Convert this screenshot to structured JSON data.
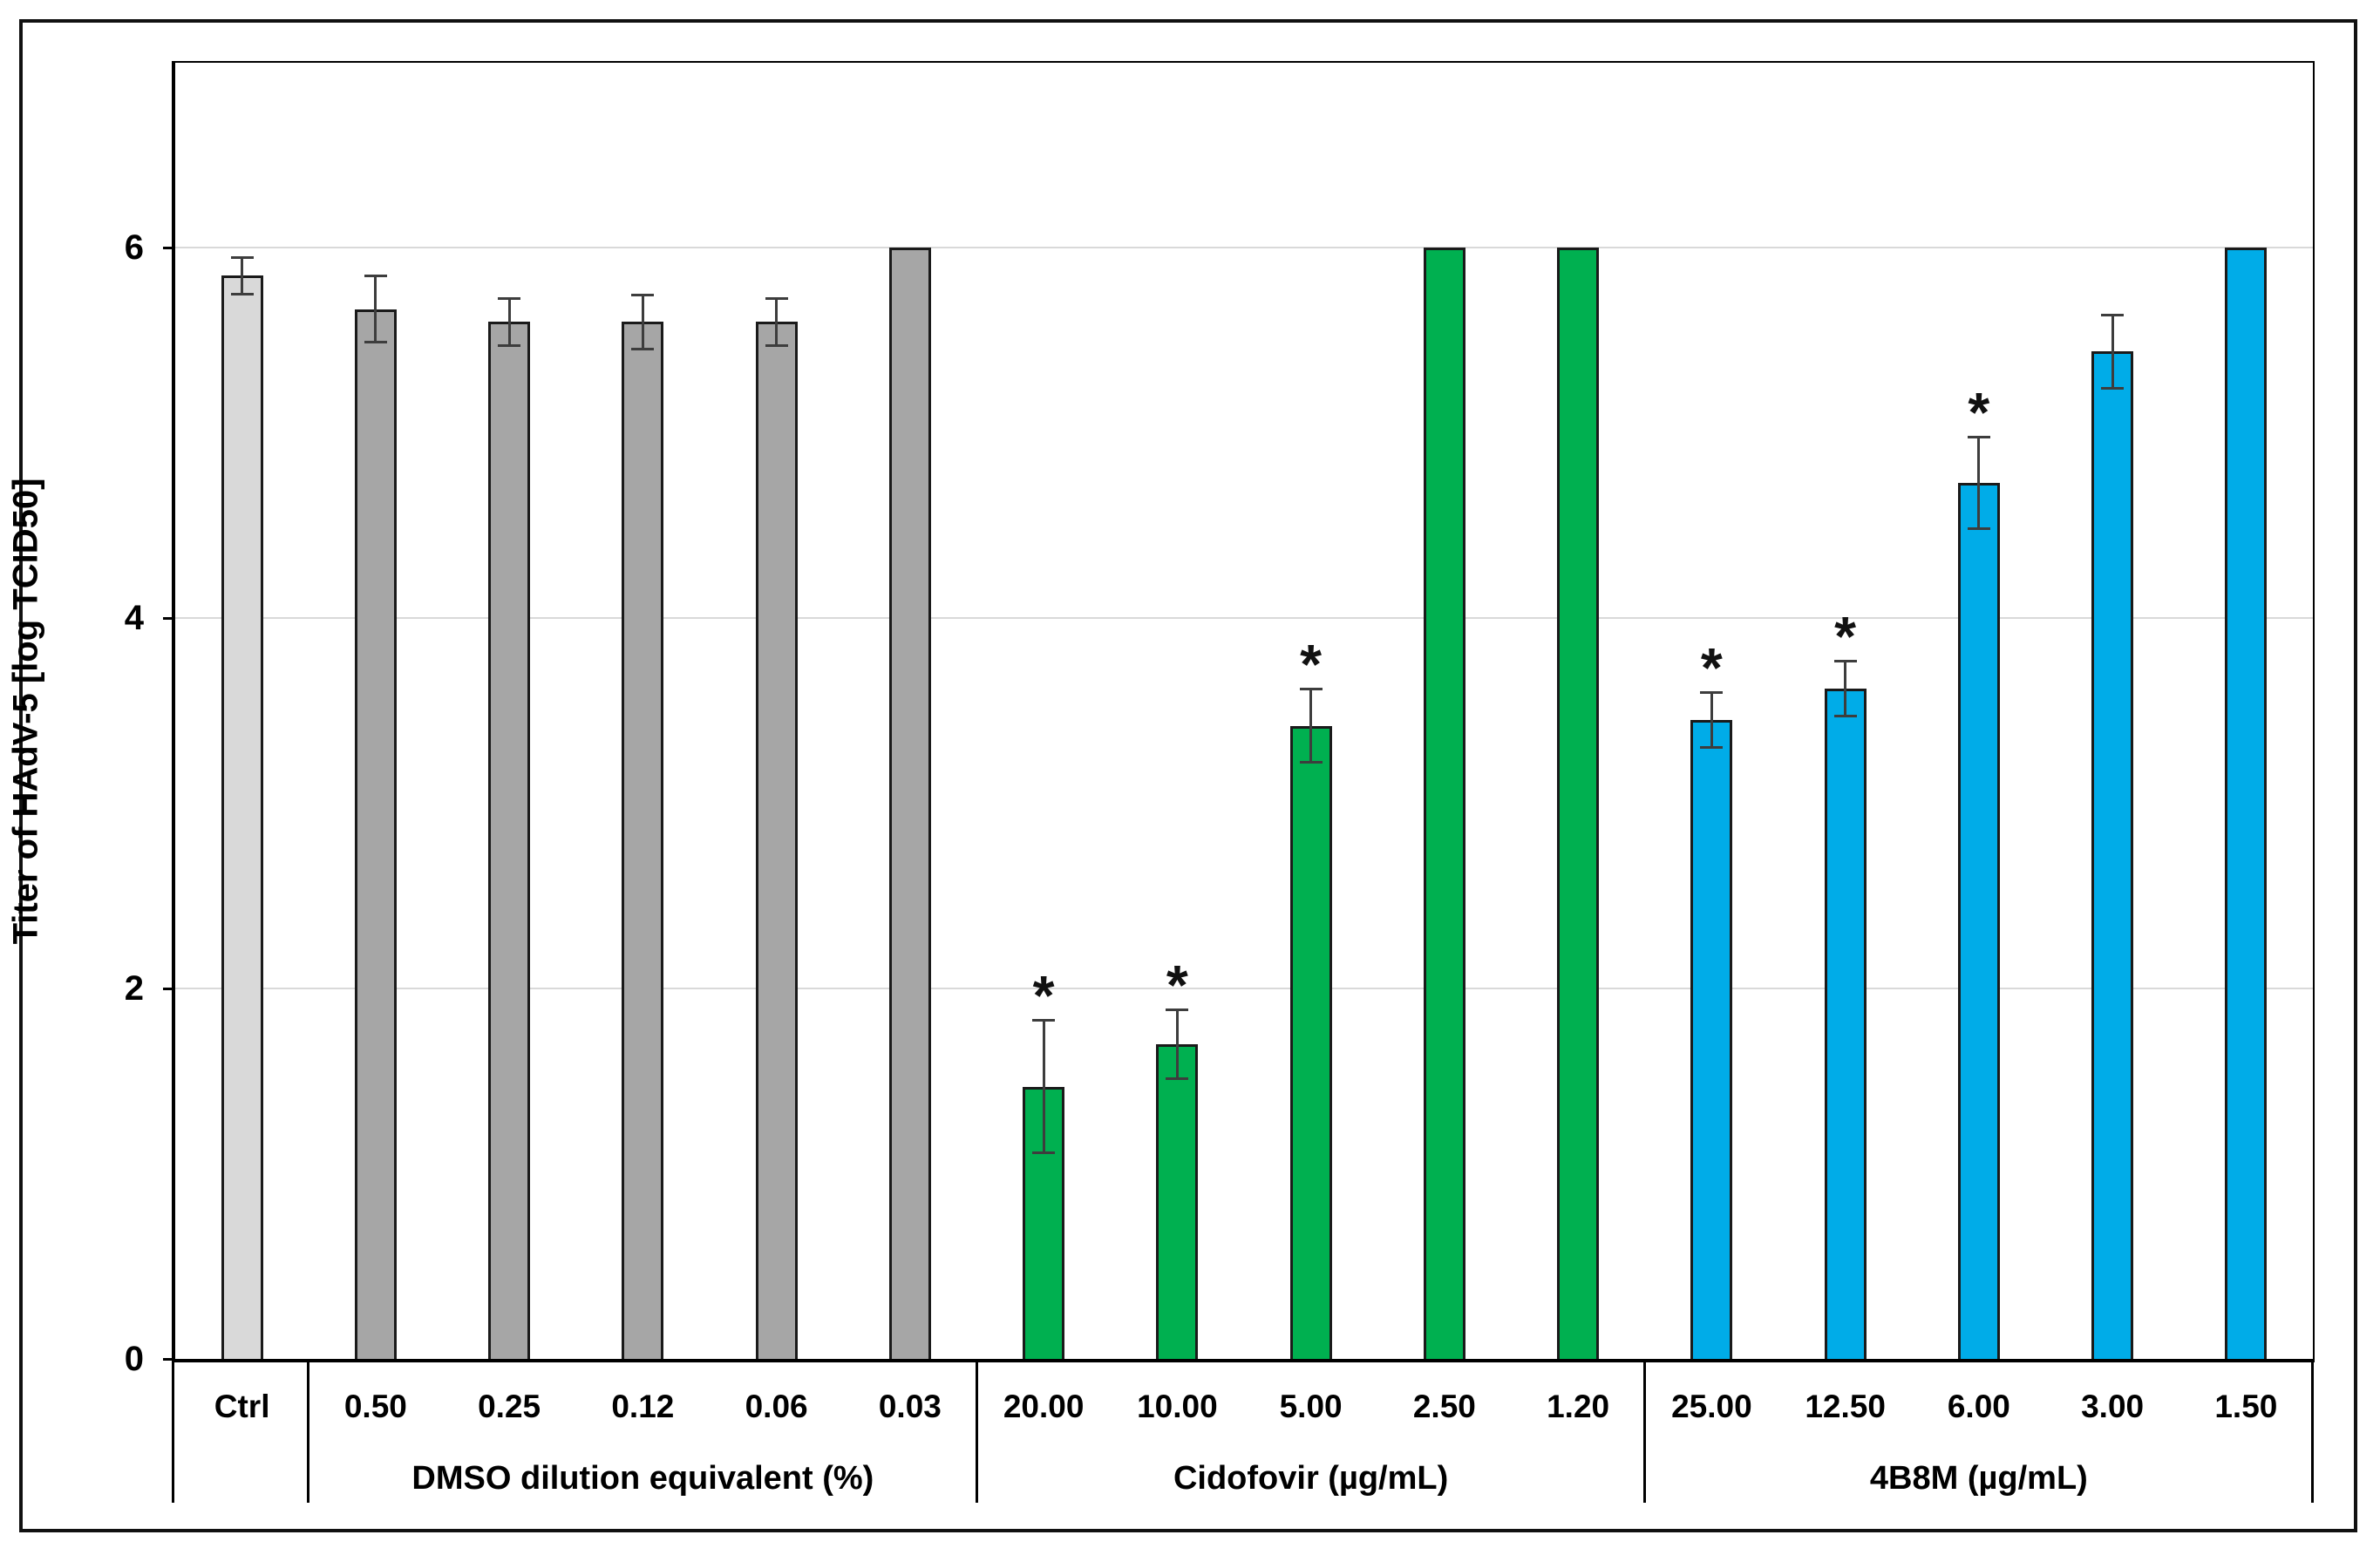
{
  "chart_data": {
    "type": "bar",
    "title": "",
    "ylabel": "Titer of HAdV-5 [log TCID50]",
    "xlabel": "",
    "ylim": [
      0,
      7
    ],
    "yticks": [
      0,
      2,
      4,
      6
    ],
    "grid": "horizontal gridlines at y ticks, light gray, behind bars",
    "legend": "none",
    "significance_marker": "*",
    "colors": {
      "control_bar": "#d9d9d9",
      "dmso_bar": "#a6a6a6",
      "cidofovir_bar": "#00b050",
      "fourb8m_bar": "#00ace8",
      "bar_outline": "#1a1a1a",
      "error_bar": "#3d3d3d",
      "gridline": "#d9d9d9",
      "axis": "#000000"
    },
    "groups": [
      {
        "label": "",
        "bar_color": "#d9d9d9",
        "bars": [
          {
            "category": "Ctrl",
            "value": 5.85,
            "error": 0.1,
            "significant": false
          }
        ]
      },
      {
        "label": "DMSO dilution equivalent (%)",
        "bar_color": "#a6a6a6",
        "bars": [
          {
            "category": "0.50",
            "value": 5.67,
            "error": 0.18,
            "significant": false
          },
          {
            "category": "0.25",
            "value": 5.6,
            "error": 0.13,
            "significant": false
          },
          {
            "category": "0.12",
            "value": 5.6,
            "error": 0.15,
            "significant": false
          },
          {
            "category": "0.06",
            "value": 5.6,
            "error": 0.13,
            "significant": false
          },
          {
            "category": "0.03",
            "value": 6.0,
            "error": null,
            "significant": false
          }
        ]
      },
      {
        "label": "Cidofovir (µg/mL)",
        "bar_color": "#00b050",
        "bars": [
          {
            "category": "20.00",
            "value": 1.47,
            "error": 0.36,
            "significant": true
          },
          {
            "category": "10.00",
            "value": 1.7,
            "error": 0.19,
            "significant": true
          },
          {
            "category": "5.00",
            "value": 3.42,
            "error": 0.2,
            "significant": true
          },
          {
            "category": "2.50",
            "value": 6.0,
            "error": null,
            "significant": false
          },
          {
            "category": "1.20",
            "value": 6.0,
            "error": null,
            "significant": false
          }
        ]
      },
      {
        "label": "4B8M (µg/mL)",
        "bar_color": "#00ace8",
        "bars": [
          {
            "category": "25.00",
            "value": 3.45,
            "error": 0.15,
            "significant": true
          },
          {
            "category": "12.50",
            "value": 3.62,
            "error": 0.15,
            "significant": true
          },
          {
            "category": "6.00",
            "value": 4.73,
            "error": 0.25,
            "significant": true
          },
          {
            "category": "3.00",
            "value": 5.44,
            "error": 0.2,
            "significant": false
          },
          {
            "category": "1.50",
            "value": 6.0,
            "error": null,
            "significant": false
          }
        ]
      }
    ]
  }
}
